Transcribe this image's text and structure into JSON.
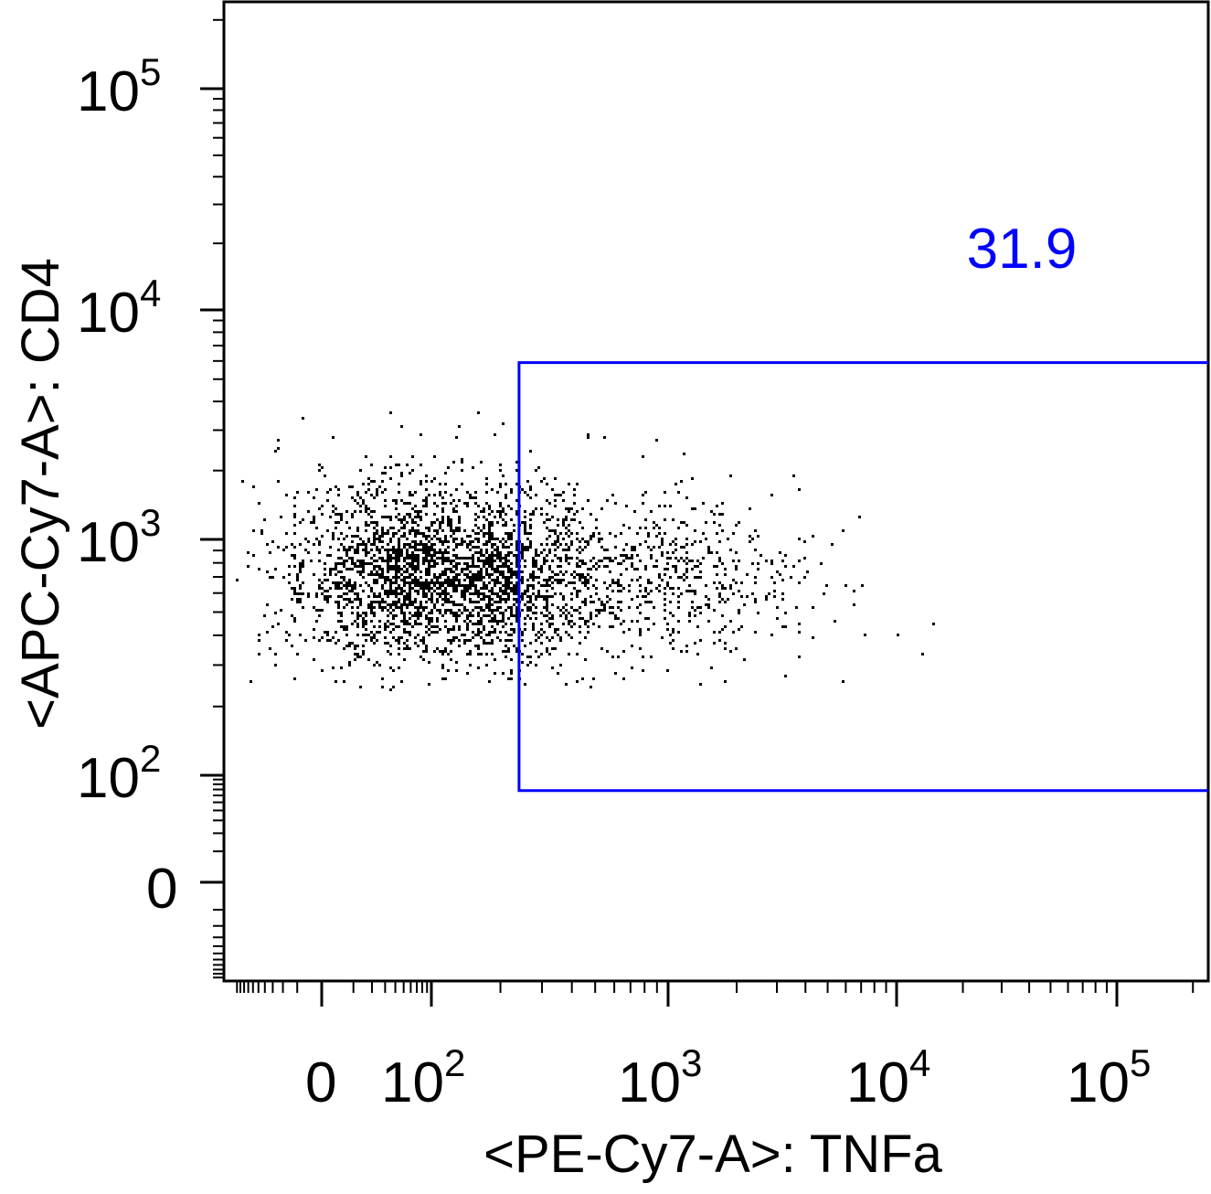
{
  "chart_data": {
    "type": "scatter",
    "plot_kind": "flow-cytometry-dot-plot",
    "x_axis": {
      "label": "<PE-Cy7-A>: TNFa",
      "scale": "biexponential",
      "range": [
        -130,
        230000
      ],
      "ticks": [
        {
          "value": 0,
          "base": "0",
          "exp": ""
        },
        {
          "value": 100,
          "base": "10",
          "exp": "2"
        },
        {
          "value": 1000,
          "base": "10",
          "exp": "3"
        },
        {
          "value": 10000,
          "base": "10",
          "exp": "4"
        },
        {
          "value": 100000,
          "base": "10",
          "exp": "5"
        }
      ]
    },
    "y_axis": {
      "label": "<APC-Cy7-A>: CD4",
      "scale": "biexponential",
      "range": [
        -110,
        240000
      ],
      "ticks": [
        {
          "value": 0,
          "base": "0",
          "exp": ""
        },
        {
          "value": 100,
          "base": "10",
          "exp": "2"
        },
        {
          "value": 1000,
          "base": "10",
          "exp": "3"
        },
        {
          "value": 10000,
          "base": "10",
          "exp": "4"
        },
        {
          "value": 100000,
          "base": "10",
          "exp": "5"
        }
      ]
    },
    "gate": {
      "shape": "rectangle",
      "x_min": 240,
      "x_max": 230000,
      "y_min": 68,
      "y_max": 5900,
      "label": "31.9",
      "color": "#0000ff"
    },
    "population": {
      "x_center": 80,
      "y_center": 750,
      "approx_events": 4500,
      "x_extent": [
        -110,
        16000
      ],
      "y_extent": [
        240,
        3800
      ]
    },
    "point_color": "#000000",
    "grid": false,
    "legend": "none"
  }
}
